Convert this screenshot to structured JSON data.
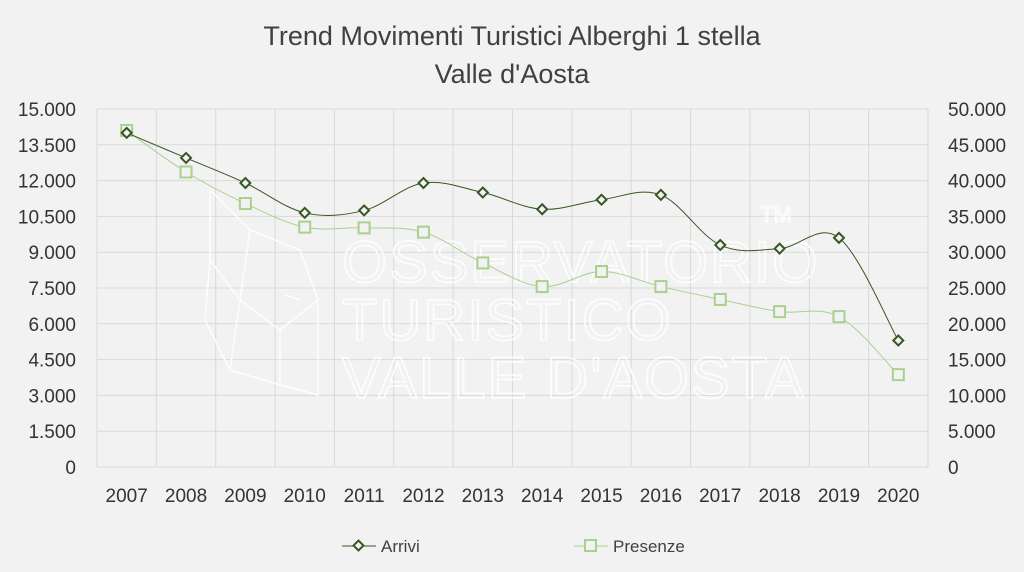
{
  "chart_data": {
    "type": "line",
    "title_lines": [
      "Trend Movimenti Turistici Alberghi 1 stella",
      "Valle d'Aosta"
    ],
    "categories": [
      "2007",
      "2008",
      "2009",
      "2010",
      "2011",
      "2012",
      "2013",
      "2014",
      "2015",
      "2016",
      "2017",
      "2018",
      "2019",
      "2020"
    ],
    "series": [
      {
        "name": "Arrivi",
        "axis": "left",
        "marker": "diamond",
        "color": "#375623",
        "values": [
          14000,
          12950,
          11900,
          10650,
          10750,
          11900,
          11500,
          10800,
          11200,
          11400,
          9300,
          9150,
          9600,
          5300
        ]
      },
      {
        "name": "Presenze",
        "axis": "right",
        "marker": "square",
        "color": "#a9d18e",
        "values": [
          47000,
          41200,
          36800,
          33500,
          33400,
          32800,
          28500,
          25200,
          27300,
          25200,
          23400,
          21700,
          21000,
          12900
        ]
      }
    ],
    "y_left": {
      "min": 0,
      "max": 15000,
      "ticks": [
        "0",
        "1.500",
        "3.000",
        "4.500",
        "6.000",
        "7.500",
        "9.000",
        "10.500",
        "12.000",
        "13.500",
        "15.000"
      ]
    },
    "y_right": {
      "min": 0,
      "max": 50000,
      "ticks": [
        "0",
        "5.000",
        "10.000",
        "15.000",
        "20.000",
        "25.000",
        "30.000",
        "35.000",
        "40.000",
        "45.000",
        "50.000"
      ]
    },
    "grid": true,
    "legend_position": "bottom"
  },
  "watermark": {
    "lines": [
      "OSSERVATORIO",
      "TURISTICO",
      "VALLE D'AOSTA"
    ],
    "trademark": "TM"
  },
  "colors": {
    "background": "#f2f2f2",
    "grid": "#d9d9d9",
    "arrivi": "#375623",
    "presenze": "#a9d18e"
  }
}
